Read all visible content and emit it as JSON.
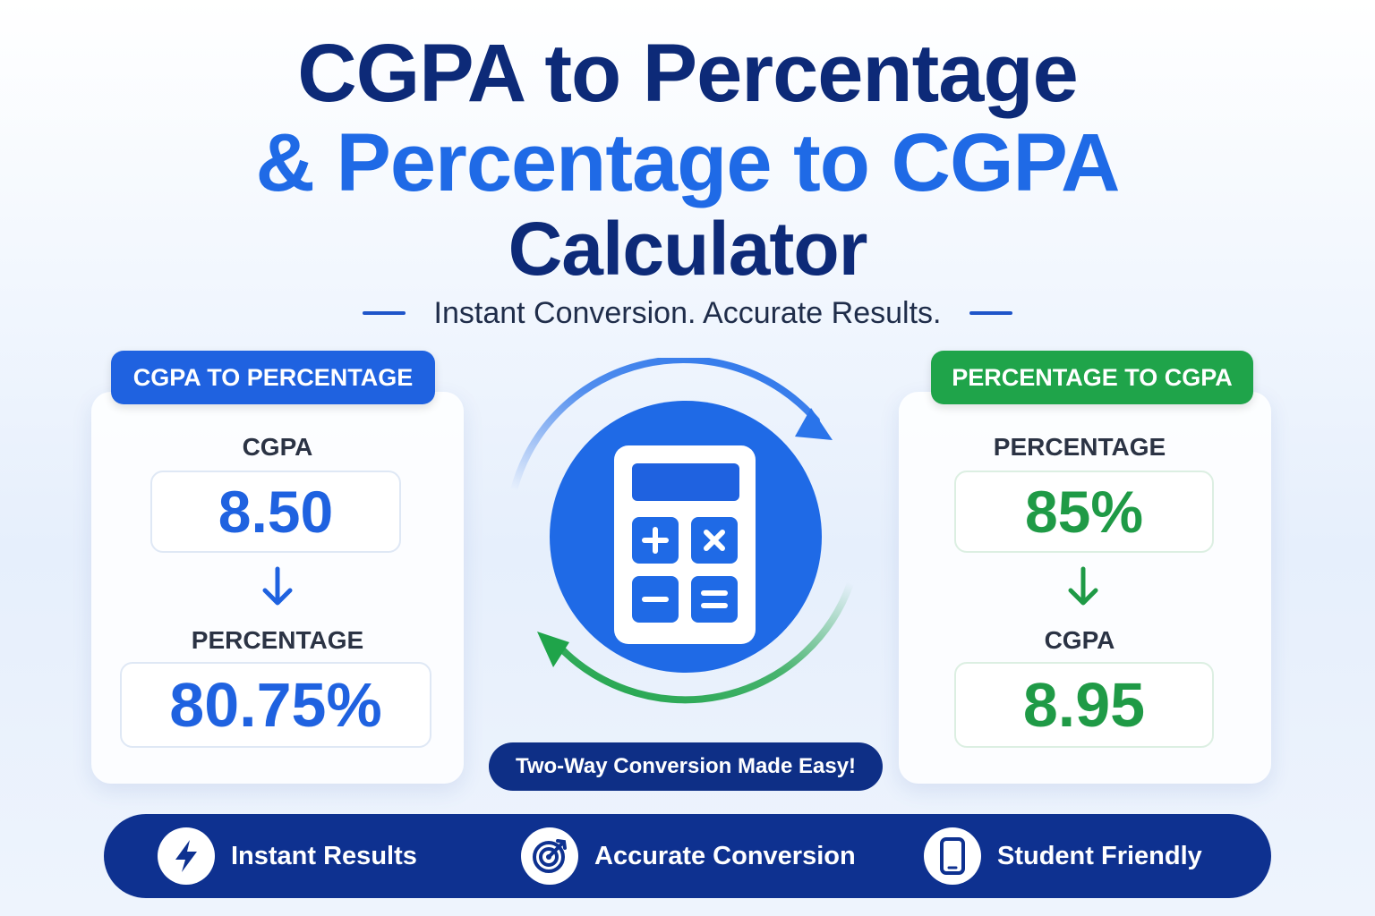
{
  "header": {
    "title_line1": "CGPA to Percentage",
    "title_line2": "& Percentage to CGPA",
    "title_line3": "Calculator",
    "subtitle": "Instant Conversion. Accurate Results."
  },
  "left_card": {
    "tag": "CGPA TO PERCENTAGE",
    "input_label": "CGPA",
    "input_value": "8.50",
    "output_label": "PERCENTAGE",
    "output_value": "80.75%"
  },
  "right_card": {
    "tag": "PERCENTAGE TO CGPA",
    "input_label": "PERCENTAGE",
    "input_value": "85%",
    "output_label": "CGPA",
    "output_value": "8.95"
  },
  "center": {
    "pill": "Two-Way Conversion Made Easy!",
    "icon": "calculator-icon"
  },
  "features": [
    {
      "label": "Instant Results",
      "icon": "lightning-icon"
    },
    {
      "label": "Accurate Conversion",
      "icon": "target-icon"
    },
    {
      "label": "Student Friendly",
      "icon": "mobile-phone-icon"
    }
  ],
  "colors": {
    "navy": "#0d2a78",
    "blue": "#1f62e0",
    "green": "#1fa44a",
    "bar": "#0e3190"
  }
}
